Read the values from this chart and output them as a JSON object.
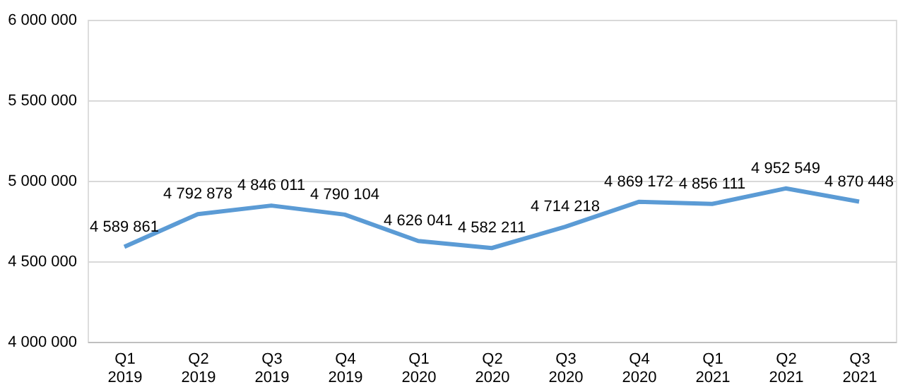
{
  "chart_data": {
    "type": "line",
    "categories": [
      "Q1 2019",
      "Q2 2019",
      "Q3 2019",
      "Q4 2019",
      "Q1 2020",
      "Q2 2020",
      "Q3 2020",
      "Q4 2020",
      "Q1 2021",
      "Q2 2021",
      "Q3 2021"
    ],
    "series": [
      {
        "color": "#5b9bd5",
        "values": [
          4589861,
          4792878,
          4846011,
          4790104,
          4626041,
          4582211,
          4714218,
          4869172,
          4856111,
          4952549,
          4870448
        ],
        "value_labels": [
          "4 589 861",
          "4 792 878",
          "4 846 011",
          "4 790 104",
          "4 626 041",
          "4 582 211",
          "4 714 218",
          "4 869 172",
          "4 856 111",
          "4 952 549",
          "4 870 448"
        ]
      }
    ],
    "ylim": [
      4000000,
      6000000
    ],
    "yticks": [
      {
        "value": 4000000,
        "label": "4 000 000"
      },
      {
        "value": 4500000,
        "label": "4 500 000"
      },
      {
        "value": 5000000,
        "label": "5 000 000"
      },
      {
        "value": 5500000,
        "label": "5 500 000"
      },
      {
        "value": 6000000,
        "label": "6 000 000"
      }
    ],
    "grid": "y",
    "marker": "none",
    "line_style": "solid"
  }
}
